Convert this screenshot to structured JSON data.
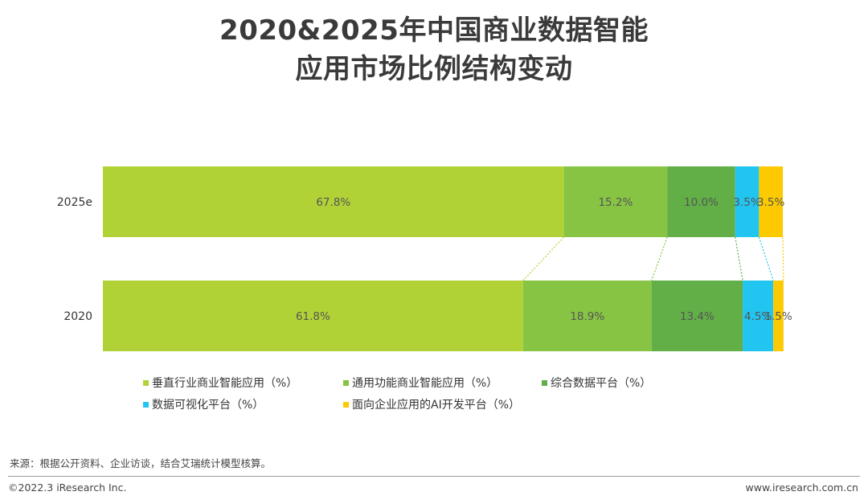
{
  "title": {
    "line1": "2020&2025年中国商业数据智能",
    "line2": "应用市场比例结构变动"
  },
  "chart_data": {
    "type": "bar",
    "orientation": "horizontal",
    "stacking": "percent",
    "categories": [
      "2025e",
      "2020"
    ],
    "series": [
      {
        "name": "垂直行业商业智能应用（%）",
        "color": "#b1d236",
        "values": [
          67.8,
          61.8
        ],
        "labels": [
          "67.8%",
          "61.8%"
        ]
      },
      {
        "name": "通用功能商业智能应用（%）",
        "color": "#87c443",
        "values": [
          15.2,
          18.9
        ],
        "labels": [
          "15.2%",
          "18.9%"
        ]
      },
      {
        "name": "综合数据平台（%）",
        "color": "#62ae47",
        "values": [
          10.0,
          13.4
        ],
        "labels": [
          "10.0%",
          "13.4%"
        ]
      },
      {
        "name": "数据可视化平台（%）",
        "color": "#21c5f0",
        "values": [
          3.5,
          4.5
        ],
        "labels": [
          "3.5%",
          "4.5%"
        ]
      },
      {
        "name": "面向企业应用的AI开发平台（%）",
        "color": "#fdc900",
        "values": [
          3.5,
          1.5
        ],
        "labels": [
          "3.5%",
          "1.5%"
        ]
      }
    ],
    "xlim": [
      0,
      100
    ],
    "grid": false,
    "legend_position": "bottom"
  },
  "footer": {
    "source": "来源：根据公开资料、企业访谈，结合艾瑞统计模型核算。",
    "copyright": "©2022.3 iResearch Inc.",
    "website": "www.iresearch.com.cn"
  }
}
